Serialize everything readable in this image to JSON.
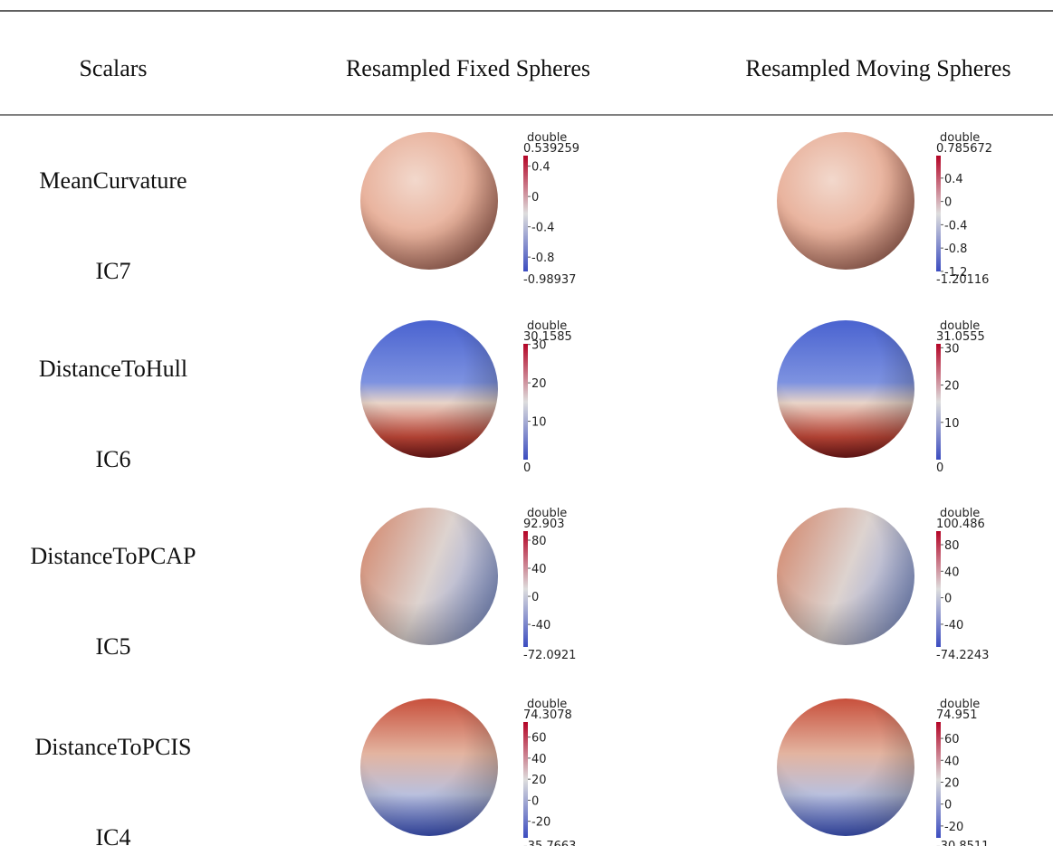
{
  "header": {
    "columns": [
      "Scalars",
      "Resampled Fixed Spheres",
      "Resampled Moving Spheres"
    ]
  },
  "rows": [
    {
      "scalar": "MeanCurvature",
      "component": "IC7",
      "fixed": {
        "title": "double",
        "max": "0.539259",
        "ticks": [
          "0.4",
          "0",
          "-0.4",
          "-0.8"
        ],
        "min": "-0.98937"
      },
      "moving": {
        "title": "double",
        "max": "0.785672",
        "ticks": [
          "0.4",
          "0",
          "-0.4",
          "-0.8",
          "-1.2"
        ],
        "min": "-1.20116"
      }
    },
    {
      "scalar": "DistanceToHull",
      "component": "IC6",
      "fixed": {
        "title": "double",
        "max": "30.1585",
        "ticks": [
          "30",
          "20",
          "10"
        ],
        "min": "0"
      },
      "moving": {
        "title": "double",
        "max": "31.0555",
        "ticks": [
          "30",
          "20",
          "10"
        ],
        "min": "0"
      }
    },
    {
      "scalar": "DistanceToPCAP",
      "component": "IC5",
      "fixed": {
        "title": "double",
        "max": "92.903",
        "ticks": [
          "80",
          "40",
          "0",
          "-40"
        ],
        "min": "-72.0921"
      },
      "moving": {
        "title": "double",
        "max": "100.486",
        "ticks": [
          "80",
          "40",
          "0",
          "-40"
        ],
        "min": "-74.2243"
      }
    },
    {
      "scalar": "DistanceToPCIS",
      "component": "IC4",
      "fixed": {
        "title": "double",
        "max": "74.3078",
        "ticks": [
          "60",
          "40",
          "20",
          "0",
          "-20"
        ],
        "min": "-35.7663"
      },
      "moving": {
        "title": "double",
        "max": "74.951",
        "ticks": [
          "60",
          "40",
          "20",
          "0",
          "-20"
        ],
        "min": "-30.8511"
      }
    }
  ]
}
